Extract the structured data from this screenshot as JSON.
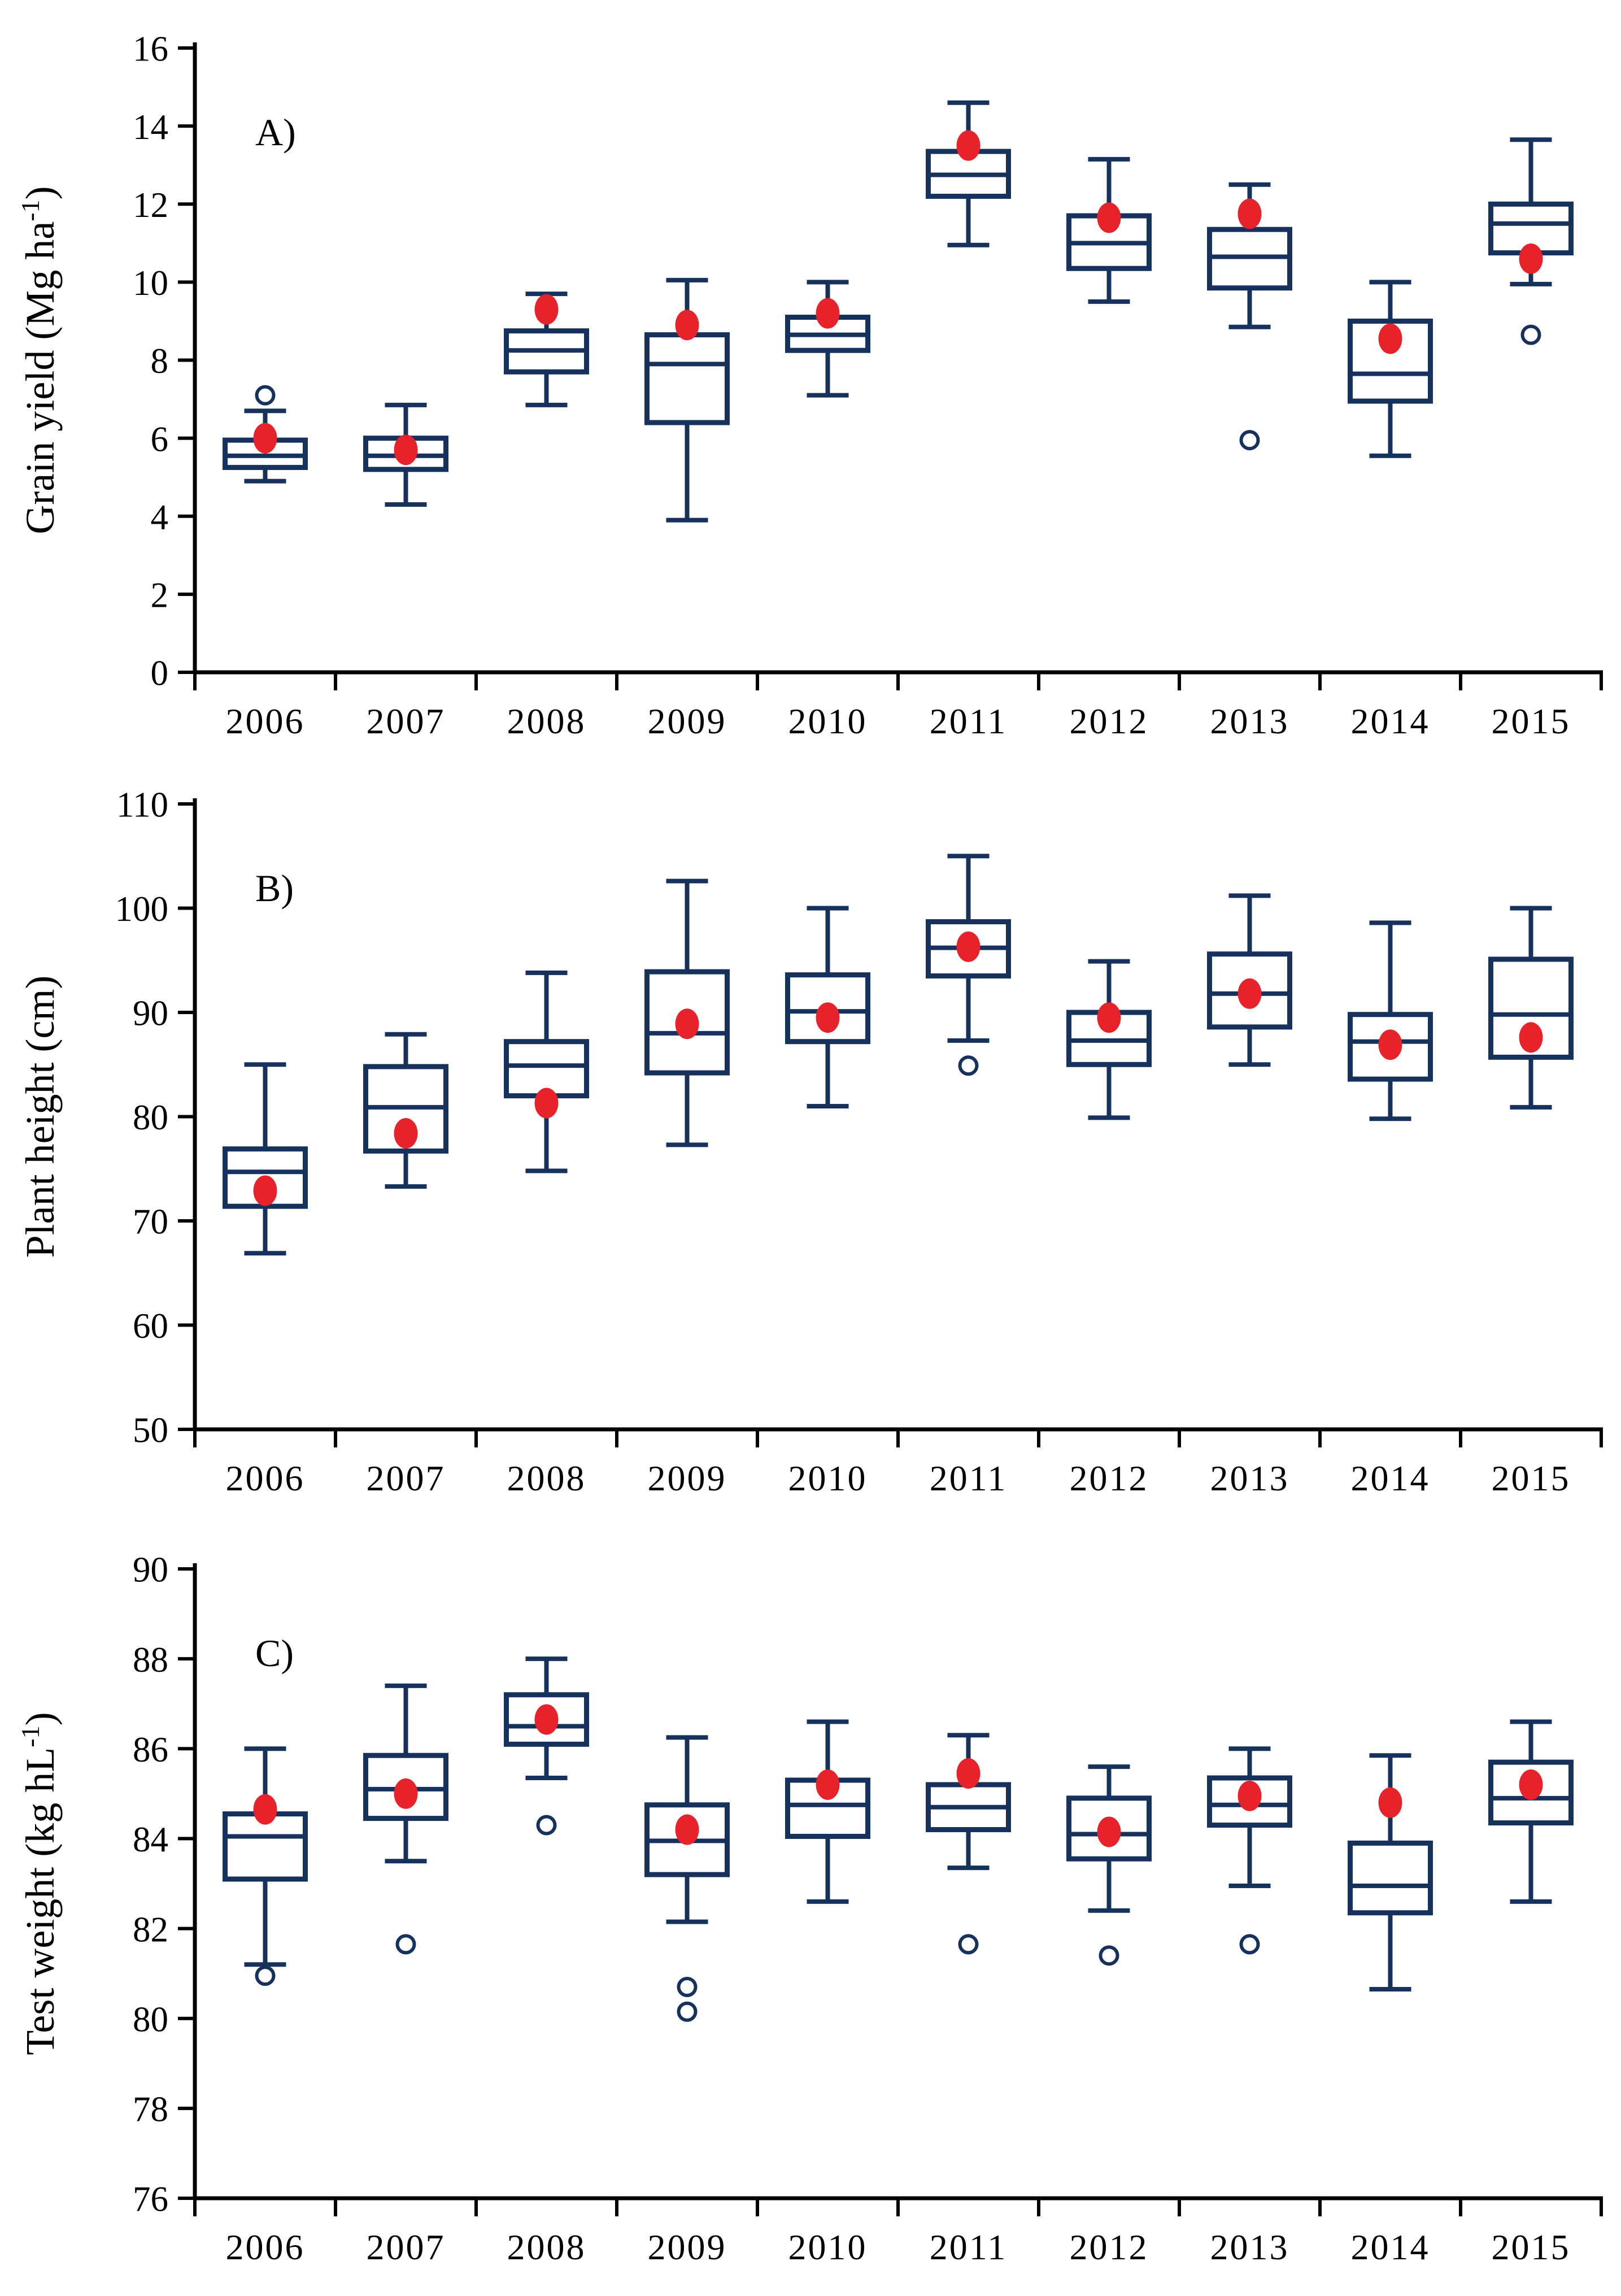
{
  "colors": {
    "box_stroke": "#16325c",
    "mean_fill": "#e8222b",
    "axis": "#000000",
    "background": "#ffffff"
  },
  "chart_data": [
    {
      "type": "box",
      "panel_label": "A)",
      "ylabel": "Grain yield (Mg ha^-1)",
      "ylim": [
        0,
        16
      ],
      "ytick_step": 2,
      "ytick_labels": [
        "0",
        "2",
        "4",
        "6",
        "8",
        "10",
        "12",
        "14",
        "16"
      ],
      "categories": [
        "2006",
        "2007",
        "2008",
        "2009",
        "2010",
        "2011",
        "2012",
        "2013",
        "2014",
        "2015"
      ],
      "boxes": [
        {
          "year": "2006",
          "whisker_low": 4.9,
          "q1": 5.25,
          "median": 5.55,
          "q3": 5.95,
          "whisker_high": 6.7,
          "mean": 6.0,
          "outliers": [
            7.1
          ]
        },
        {
          "year": "2007",
          "whisker_low": 4.3,
          "q1": 5.2,
          "median": 5.55,
          "q3": 6.0,
          "whisker_high": 6.85,
          "mean": 5.7,
          "outliers": []
        },
        {
          "year": "2008",
          "whisker_low": 6.85,
          "q1": 7.7,
          "median": 8.25,
          "q3": 8.75,
          "whisker_high": 9.7,
          "mean": 9.3,
          "outliers": []
        },
        {
          "year": "2009",
          "whisker_low": 3.9,
          "q1": 6.4,
          "median": 7.9,
          "q3": 8.65,
          "whisker_high": 10.05,
          "mean": 8.9,
          "outliers": []
        },
        {
          "year": "2010",
          "whisker_low": 7.1,
          "q1": 8.25,
          "median": 8.65,
          "q3": 9.1,
          "whisker_high": 10.0,
          "mean": 9.2,
          "outliers": []
        },
        {
          "year": "2011",
          "whisker_low": 10.95,
          "q1": 12.2,
          "median": 12.75,
          "q3": 13.35,
          "whisker_high": 14.6,
          "mean": 13.5,
          "outliers": []
        },
        {
          "year": "2012",
          "whisker_low": 9.5,
          "q1": 10.35,
          "median": 11.0,
          "q3": 11.7,
          "whisker_high": 13.15,
          "mean": 11.65,
          "outliers": []
        },
        {
          "year": "2013",
          "whisker_low": 8.85,
          "q1": 9.85,
          "median": 10.65,
          "q3": 11.35,
          "whisker_high": 12.5,
          "mean": 11.75,
          "outliers": [
            5.95
          ]
        },
        {
          "year": "2014",
          "whisker_low": 5.55,
          "q1": 6.95,
          "median": 7.65,
          "q3": 9.0,
          "whisker_high": 10.0,
          "mean": 8.55,
          "outliers": []
        },
        {
          "year": "2015",
          "whisker_low": 9.95,
          "q1": 10.75,
          "median": 11.5,
          "q3": 12.0,
          "whisker_high": 13.65,
          "mean": 10.6,
          "outliers": [
            8.65
          ]
        }
      ]
    },
    {
      "type": "box",
      "panel_label": "B)",
      "ylabel": "Plant height (cm)",
      "ylim": [
        50,
        110
      ],
      "ytick_step": 10,
      "ytick_labels": [
        "50",
        "60",
        "70",
        "80",
        "90",
        "100",
        "110"
      ],
      "categories": [
        "2006",
        "2007",
        "2008",
        "2009",
        "2010",
        "2011",
        "2012",
        "2013",
        "2014",
        "2015"
      ],
      "boxes": [
        {
          "year": "2006",
          "whisker_low": 66.9,
          "q1": 71.4,
          "median": 74.7,
          "q3": 76.9,
          "whisker_high": 85.0,
          "mean": 72.9,
          "outliers": []
        },
        {
          "year": "2007",
          "whisker_low": 73.3,
          "q1": 76.7,
          "median": 80.9,
          "q3": 84.8,
          "whisker_high": 87.9,
          "mean": 78.4,
          "outliers": []
        },
        {
          "year": "2008",
          "whisker_low": 74.8,
          "q1": 82.0,
          "median": 84.9,
          "q3": 87.2,
          "whisker_high": 93.8,
          "mean": 81.3,
          "outliers": []
        },
        {
          "year": "2009",
          "whisker_low": 77.3,
          "q1": 84.2,
          "median": 88.0,
          "q3": 93.9,
          "whisker_high": 102.6,
          "mean": 88.9,
          "outliers": []
        },
        {
          "year": "2010",
          "whisker_low": 81.0,
          "q1": 87.2,
          "median": 90.1,
          "q3": 93.6,
          "whisker_high": 100.0,
          "mean": 89.5,
          "outliers": []
        },
        {
          "year": "2011",
          "whisker_low": 87.3,
          "q1": 93.5,
          "median": 96.2,
          "q3": 98.7,
          "whisker_high": 105.0,
          "mean": 96.3,
          "outliers": [
            84.9
          ]
        },
        {
          "year": "2012",
          "whisker_low": 79.9,
          "q1": 85.0,
          "median": 87.3,
          "q3": 90.0,
          "whisker_high": 94.9,
          "mean": 89.5,
          "outliers": []
        },
        {
          "year": "2013",
          "whisker_low": 85.0,
          "q1": 88.6,
          "median": 91.8,
          "q3": 95.6,
          "whisker_high": 101.2,
          "mean": 91.8,
          "outliers": []
        },
        {
          "year": "2014",
          "whisker_low": 79.8,
          "q1": 83.6,
          "median": 87.2,
          "q3": 89.8,
          "whisker_high": 98.6,
          "mean": 86.9,
          "outliers": []
        },
        {
          "year": "2015",
          "whisker_low": 80.9,
          "q1": 85.7,
          "median": 89.8,
          "q3": 95.1,
          "whisker_high": 100.0,
          "mean": 87.6,
          "outliers": []
        }
      ]
    },
    {
      "type": "box",
      "panel_label": "C)",
      "ylabel": "Test weight (kg hL^-1)",
      "ylim": [
        76,
        90
      ],
      "ytick_step": 2,
      "ytick_labels": [
        "76",
        "78",
        "80",
        "82",
        "84",
        "86",
        "88",
        "90"
      ],
      "categories": [
        "2006",
        "2007",
        "2008",
        "2009",
        "2010",
        "2011",
        "2012",
        "2013",
        "2014",
        "2015"
      ],
      "boxes": [
        {
          "year": "2006",
          "whisker_low": 81.2,
          "q1": 83.1,
          "median": 84.05,
          "q3": 84.55,
          "whisker_high": 86.0,
          "mean": 84.65,
          "outliers": [
            80.95
          ]
        },
        {
          "year": "2007",
          "whisker_low": 83.5,
          "q1": 84.45,
          "median": 85.1,
          "q3": 85.85,
          "whisker_high": 87.4,
          "mean": 85.0,
          "outliers": [
            81.65
          ]
        },
        {
          "year": "2008",
          "whisker_low": 85.35,
          "q1": 86.1,
          "median": 86.5,
          "q3": 87.2,
          "whisker_high": 88.0,
          "mean": 86.65,
          "outliers": [
            84.3
          ]
        },
        {
          "year": "2009",
          "whisker_low": 82.15,
          "q1": 83.2,
          "median": 83.95,
          "q3": 84.75,
          "whisker_high": 86.25,
          "mean": 84.2,
          "outliers": [
            80.7,
            80.15
          ]
        },
        {
          "year": "2010",
          "whisker_low": 82.6,
          "q1": 84.05,
          "median": 84.75,
          "q3": 85.3,
          "whisker_high": 86.6,
          "mean": 85.2,
          "outliers": []
        },
        {
          "year": "2011",
          "whisker_low": 83.35,
          "q1": 84.2,
          "median": 84.7,
          "q3": 85.2,
          "whisker_high": 86.3,
          "mean": 85.45,
          "outliers": [
            81.65
          ]
        },
        {
          "year": "2012",
          "whisker_low": 82.4,
          "q1": 83.55,
          "median": 84.1,
          "q3": 84.9,
          "whisker_high": 85.6,
          "mean": 84.15,
          "outliers": [
            81.4
          ]
        },
        {
          "year": "2013",
          "whisker_low": 82.95,
          "q1": 84.3,
          "median": 84.75,
          "q3": 85.35,
          "whisker_high": 86.0,
          "mean": 84.95,
          "outliers": [
            81.65
          ]
        },
        {
          "year": "2014",
          "whisker_low": 80.65,
          "q1": 82.35,
          "median": 82.95,
          "q3": 83.9,
          "whisker_high": 85.85,
          "mean": 84.8,
          "outliers": []
        },
        {
          "year": "2015",
          "whisker_low": 82.6,
          "q1": 84.35,
          "median": 84.9,
          "q3": 85.7,
          "whisker_high": 86.6,
          "mean": 85.2,
          "outliers": []
        }
      ]
    }
  ]
}
